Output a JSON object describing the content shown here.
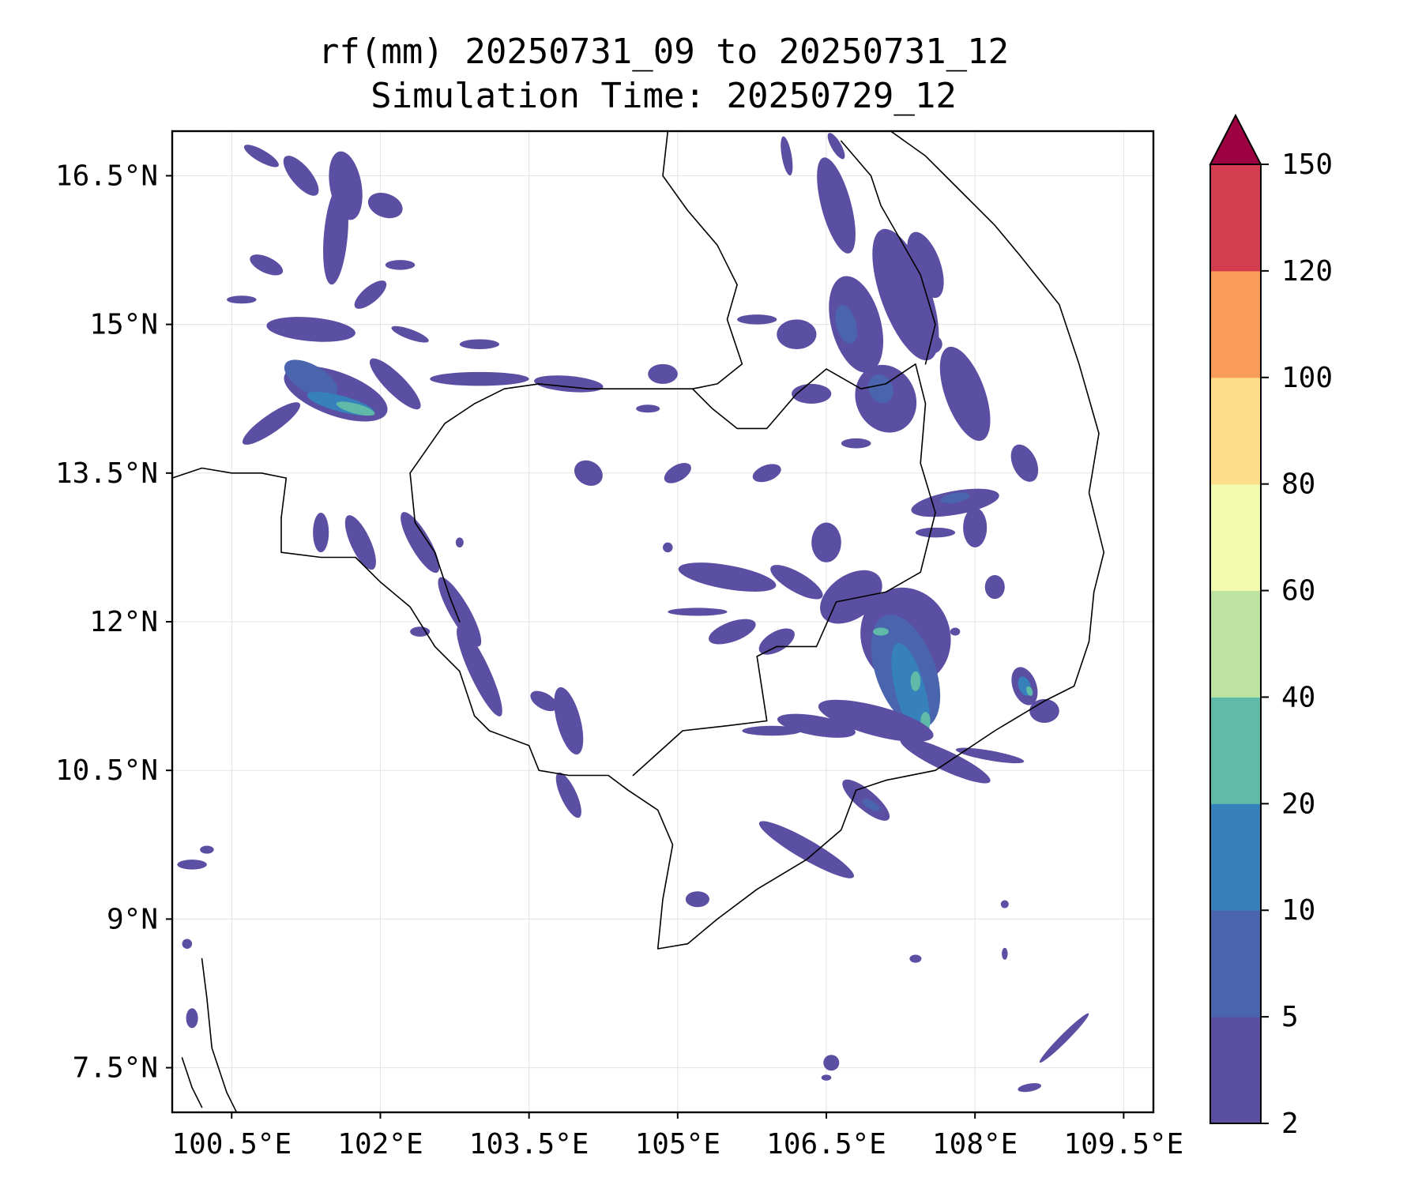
{
  "title": {
    "line1": "rf(mm) 20250731_09 to 20250731_12",
    "line2": "Simulation Time: 20250729_12"
  },
  "map": {
    "lon_range": [
      99.9,
      109.8
    ],
    "lat_range": [
      7.05,
      16.95
    ],
    "x_ticks": [
      {
        "value": 100.5,
        "label": "100.5°E"
      },
      {
        "value": 102.0,
        "label": "102°E"
      },
      {
        "value": 103.5,
        "label": "103.5°E"
      },
      {
        "value": 105.0,
        "label": "105°E"
      },
      {
        "value": 106.5,
        "label": "106.5°E"
      },
      {
        "value": 108.0,
        "label": "108°E"
      },
      {
        "value": 109.5,
        "label": "109.5°E"
      }
    ],
    "y_ticks": [
      {
        "value": 16.5,
        "label": "16.5°N"
      },
      {
        "value": 15.0,
        "label": "15°N"
      },
      {
        "value": 13.5,
        "label": "13.5°N"
      },
      {
        "value": 12.0,
        "label": "12°N"
      },
      {
        "value": 10.5,
        "label": "10.5°N"
      },
      {
        "value": 9.0,
        "label": "9°N"
      },
      {
        "value": 7.5,
        "label": "7.5°N"
      }
    ],
    "grid": true
  },
  "colorbar": {
    "levels": [
      2,
      5,
      10,
      20,
      40,
      60,
      80,
      100,
      120,
      150
    ],
    "colors": [
      "#5a4fa2",
      "#4a64ae",
      "#3680bb",
      "#5fbaa8",
      "#bce3a0",
      "#f2faad",
      "#fddd8b",
      "#fa9c5a",
      "#d43d4f"
    ],
    "extend_color": "#9e0142",
    "labels": [
      "2",
      "5",
      "10",
      "20",
      "40",
      "60",
      "80",
      "100",
      "120",
      "150"
    ]
  },
  "rain_cells": [
    {
      "lon": 101.55,
      "lat": 14.3,
      "rx": 0.55,
      "ry": 0.22,
      "rot": 20,
      "level": 0
    },
    {
      "lon": 101.3,
      "lat": 14.45,
      "rx": 0.3,
      "ry": 0.14,
      "rot": 30,
      "level": 1
    },
    {
      "lon": 101.6,
      "lat": 14.2,
      "rx": 0.35,
      "ry": 0.08,
      "rot": 15,
      "level": 2
    },
    {
      "lon": 101.75,
      "lat": 14.15,
      "rx": 0.2,
      "ry": 0.05,
      "rot": 15,
      "level": 3
    },
    {
      "lon": 100.9,
      "lat": 14.0,
      "rx": 0.35,
      "ry": 0.09,
      "rot": -35,
      "level": 0
    },
    {
      "lon": 102.15,
      "lat": 14.4,
      "rx": 0.35,
      "ry": 0.1,
      "rot": 45,
      "level": 0
    },
    {
      "lon": 101.3,
      "lat": 14.95,
      "rx": 0.45,
      "ry": 0.12,
      "rot": 5,
      "level": 0
    },
    {
      "lon": 101.2,
      "lat": 16.5,
      "rx": 0.25,
      "ry": 0.1,
      "rot": 50,
      "level": 0
    },
    {
      "lon": 100.8,
      "lat": 16.7,
      "rx": 0.2,
      "ry": 0.06,
      "rot": 30,
      "level": 0
    },
    {
      "lon": 101.65,
      "lat": 16.4,
      "rx": 0.16,
      "ry": 0.35,
      "rot": -10,
      "level": 0
    },
    {
      "lon": 101.55,
      "lat": 15.9,
      "rx": 0.12,
      "ry": 0.5,
      "rot": 5,
      "level": 0
    },
    {
      "lon": 101.9,
      "lat": 15.3,
      "rx": 0.2,
      "ry": 0.08,
      "rot": -40,
      "level": 0
    },
    {
      "lon": 102.05,
      "lat": 16.2,
      "rx": 0.18,
      "ry": 0.12,
      "rot": 20,
      "level": 0
    },
    {
      "lon": 100.85,
      "lat": 15.6,
      "rx": 0.18,
      "ry": 0.08,
      "rot": 25,
      "level": 0
    },
    {
      "lon": 100.6,
      "lat": 15.25,
      "rx": 0.15,
      "ry": 0.04,
      "rot": 0,
      "level": 0
    },
    {
      "lon": 102.2,
      "lat": 15.6,
      "rx": 0.15,
      "ry": 0.05,
      "rot": 0,
      "level": 0
    },
    {
      "lon": 102.3,
      "lat": 14.9,
      "rx": 0.2,
      "ry": 0.05,
      "rot": 20,
      "level": 0
    },
    {
      "lon": 103.0,
      "lat": 14.8,
      "rx": 0.2,
      "ry": 0.05,
      "rot": 0,
      "level": 0
    },
    {
      "lon": 103.0,
      "lat": 14.45,
      "rx": 0.5,
      "ry": 0.07,
      "rot": 0,
      "level": 0
    },
    {
      "lon": 103.9,
      "lat": 14.4,
      "rx": 0.35,
      "ry": 0.08,
      "rot": 5,
      "level": 0
    },
    {
      "lon": 104.85,
      "lat": 14.5,
      "rx": 0.15,
      "ry": 0.1,
      "rot": 0,
      "level": 0
    },
    {
      "lon": 104.1,
      "lat": 13.5,
      "rx": 0.15,
      "ry": 0.12,
      "rot": 30,
      "level": 0
    },
    {
      "lon": 105.0,
      "lat": 13.5,
      "rx": 0.15,
      "ry": 0.08,
      "rot": -30,
      "level": 0
    },
    {
      "lon": 102.4,
      "lat": 12.8,
      "rx": 0.1,
      "ry": 0.35,
      "rot": -30,
      "level": 0
    },
    {
      "lon": 101.8,
      "lat": 12.8,
      "rx": 0.1,
      "ry": 0.3,
      "rot": -25,
      "level": 0
    },
    {
      "lon": 101.4,
      "lat": 12.9,
      "rx": 0.08,
      "ry": 0.2,
      "rot": 0,
      "level": 0
    },
    {
      "lon": 102.8,
      "lat": 12.1,
      "rx": 0.1,
      "ry": 0.4,
      "rot": -30,
      "level": 0
    },
    {
      "lon": 103.0,
      "lat": 11.5,
      "rx": 0.1,
      "ry": 0.5,
      "rot": -25,
      "level": 0
    },
    {
      "lon": 103.9,
      "lat": 11.0,
      "rx": 0.12,
      "ry": 0.35,
      "rot": -15,
      "level": 0
    },
    {
      "lon": 103.9,
      "lat": 10.25,
      "rx": 0.08,
      "ry": 0.25,
      "rot": -25,
      "level": 0
    },
    {
      "lon": 103.65,
      "lat": 11.2,
      "rx": 0.15,
      "ry": 0.08,
      "rot": 30,
      "level": 0
    },
    {
      "lon": 102.4,
      "lat": 11.9,
      "rx": 0.1,
      "ry": 0.05,
      "rot": 0,
      "level": 0
    },
    {
      "lon": 105.5,
      "lat": 12.45,
      "rx": 0.5,
      "ry": 0.12,
      "rot": 10,
      "level": 0
    },
    {
      "lon": 106.2,
      "lat": 12.4,
      "rx": 0.3,
      "ry": 0.1,
      "rot": 30,
      "level": 0
    },
    {
      "lon": 105.55,
      "lat": 11.9,
      "rx": 0.25,
      "ry": 0.1,
      "rot": -20,
      "level": 0
    },
    {
      "lon": 106.0,
      "lat": 11.8,
      "rx": 0.2,
      "ry": 0.1,
      "rot": -30,
      "level": 0
    },
    {
      "lon": 105.2,
      "lat": 12.1,
      "rx": 0.3,
      "ry": 0.04,
      "rot": 0,
      "level": 0
    },
    {
      "lon": 106.75,
      "lat": 12.25,
      "rx": 0.35,
      "ry": 0.22,
      "rot": -35,
      "level": 0
    },
    {
      "lon": 106.5,
      "lat": 12.8,
      "rx": 0.15,
      "ry": 0.2,
      "rot": 0,
      "level": 0
    },
    {
      "lon": 107.3,
      "lat": 11.85,
      "rx": 0.45,
      "ry": 0.5,
      "rot": -20,
      "level": 0
    },
    {
      "lon": 107.3,
      "lat": 11.5,
      "rx": 0.3,
      "ry": 0.6,
      "rot": -20,
      "level": 1
    },
    {
      "lon": 107.35,
      "lat": 11.3,
      "rx": 0.15,
      "ry": 0.5,
      "rot": -15,
      "level": 2
    },
    {
      "lon": 107.4,
      "lat": 11.4,
      "rx": 0.05,
      "ry": 0.1,
      "rot": 0,
      "level": 3
    },
    {
      "lon": 107.5,
      "lat": 11.0,
      "rx": 0.05,
      "ry": 0.09,
      "rot": 0,
      "level": 3
    },
    {
      "lon": 107.05,
      "lat": 11.9,
      "rx": 0.08,
      "ry": 0.04,
      "rot": 0,
      "level": 3
    },
    {
      "lon": 107.0,
      "lat": 11.0,
      "rx": 0.6,
      "ry": 0.15,
      "rot": 15,
      "level": 0
    },
    {
      "lon": 106.4,
      "lat": 10.95,
      "rx": 0.4,
      "ry": 0.1,
      "rot": 10,
      "level": 0
    },
    {
      "lon": 105.95,
      "lat": 10.9,
      "rx": 0.3,
      "ry": 0.05,
      "rot": 0,
      "level": 0
    },
    {
      "lon": 107.7,
      "lat": 10.6,
      "rx": 0.5,
      "ry": 0.1,
      "rot": 25,
      "level": 0
    },
    {
      "lon": 108.15,
      "lat": 10.65,
      "rx": 0.35,
      "ry": 0.05,
      "rot": 10,
      "level": 0
    },
    {
      "lon": 106.3,
      "lat": 9.7,
      "rx": 0.55,
      "ry": 0.1,
      "rot": 30,
      "level": 0
    },
    {
      "lon": 106.9,
      "lat": 10.2,
      "rx": 0.3,
      "ry": 0.1,
      "rot": 40,
      "level": 0
    },
    {
      "lon": 106.95,
      "lat": 10.15,
      "rx": 0.1,
      "ry": 0.04,
      "rot": 30,
      "level": 1
    },
    {
      "lon": 105.2,
      "lat": 9.2,
      "rx": 0.12,
      "ry": 0.08,
      "rot": 0,
      "level": 0
    },
    {
      "lon": 108.5,
      "lat": 11.35,
      "rx": 0.12,
      "ry": 0.2,
      "rot": -20,
      "level": 0
    },
    {
      "lon": 108.5,
      "lat": 11.35,
      "rx": 0.06,
      "ry": 0.1,
      "rot": -20,
      "level": 2
    },
    {
      "lon": 108.55,
      "lat": 11.3,
      "rx": 0.03,
      "ry": 0.05,
      "rot": -20,
      "level": 3
    },
    {
      "lon": 108.7,
      "lat": 11.1,
      "rx": 0.15,
      "ry": 0.12,
      "rot": 0,
      "level": 0
    },
    {
      "lon": 108.2,
      "lat": 12.35,
      "rx": 0.1,
      "ry": 0.12,
      "rot": 0,
      "level": 0
    },
    {
      "lon": 107.3,
      "lat": 15.3,
      "rx": 0.25,
      "ry": 0.7,
      "rot": -20,
      "level": 0
    },
    {
      "lon": 107.5,
      "lat": 15.6,
      "rx": 0.15,
      "ry": 0.35,
      "rot": -20,
      "level": 0
    },
    {
      "lon": 106.8,
      "lat": 15.0,
      "rx": 0.25,
      "ry": 0.5,
      "rot": -15,
      "level": 0
    },
    {
      "lon": 106.7,
      "lat": 15.0,
      "rx": 0.1,
      "ry": 0.2,
      "rot": -15,
      "level": 1
    },
    {
      "lon": 106.2,
      "lat": 14.9,
      "rx": 0.2,
      "ry": 0.15,
      "rot": 0,
      "level": 0
    },
    {
      "lon": 105.8,
      "lat": 15.05,
      "rx": 0.2,
      "ry": 0.05,
      "rot": 0,
      "level": 0
    },
    {
      "lon": 107.1,
      "lat": 14.25,
      "rx": 0.3,
      "ry": 0.35,
      "rot": -25,
      "level": 0
    },
    {
      "lon": 107.05,
      "lat": 14.35,
      "rx": 0.12,
      "ry": 0.15,
      "rot": -25,
      "level": 1
    },
    {
      "lon": 106.35,
      "lat": 14.3,
      "rx": 0.2,
      "ry": 0.1,
      "rot": 0,
      "level": 0
    },
    {
      "lon": 106.8,
      "lat": 13.8,
      "rx": 0.15,
      "ry": 0.05,
      "rot": 0,
      "level": 0
    },
    {
      "lon": 107.9,
      "lat": 14.3,
      "rx": 0.2,
      "ry": 0.5,
      "rot": -20,
      "level": 0
    },
    {
      "lon": 107.8,
      "lat": 13.2,
      "rx": 0.45,
      "ry": 0.12,
      "rot": -10,
      "level": 0
    },
    {
      "lon": 107.8,
      "lat": 13.25,
      "rx": 0.15,
      "ry": 0.05,
      "rot": -10,
      "level": 1
    },
    {
      "lon": 108.0,
      "lat": 12.95,
      "rx": 0.12,
      "ry": 0.2,
      "rot": 0,
      "level": 0
    },
    {
      "lon": 107.6,
      "lat": 12.9,
      "rx": 0.2,
      "ry": 0.05,
      "rot": 0,
      "level": 0
    },
    {
      "lon": 108.5,
      "lat": 13.6,
      "rx": 0.12,
      "ry": 0.2,
      "rot": -25,
      "level": 0
    },
    {
      "lon": 106.6,
      "lat": 16.2,
      "rx": 0.15,
      "ry": 0.5,
      "rot": -15,
      "level": 0
    },
    {
      "lon": 106.1,
      "lat": 16.7,
      "rx": 0.05,
      "ry": 0.2,
      "rot": -10,
      "level": 0
    },
    {
      "lon": 106.6,
      "lat": 16.8,
      "rx": 0.05,
      "ry": 0.15,
      "rot": -30,
      "level": 0
    },
    {
      "lon": 107.55,
      "lat": 14.8,
      "rx": 0.12,
      "ry": 0.1,
      "rot": 0,
      "level": 0
    },
    {
      "lon": 105.9,
      "lat": 13.5,
      "rx": 0.15,
      "ry": 0.08,
      "rot": -20,
      "level": 0
    },
    {
      "lon": 108.9,
      "lat": 7.8,
      "rx": 0.35,
      "ry": 0.04,
      "rot": -45,
      "level": 0
    },
    {
      "lon": 108.55,
      "lat": 7.3,
      "rx": 0.12,
      "ry": 0.04,
      "rot": -10,
      "level": 0
    },
    {
      "lon": 106.55,
      "lat": 7.55,
      "rx": 0.08,
      "ry": 0.08,
      "rot": 45,
      "level": 0
    },
    {
      "lon": 107.4,
      "lat": 8.6,
      "rx": 0.06,
      "ry": 0.04,
      "rot": 0,
      "level": 0
    },
    {
      "lon": 108.3,
      "lat": 9.15,
      "rx": 0.04,
      "ry": 0.04,
      "rot": 0,
      "level": 0
    },
    {
      "lon": 108.3,
      "lat": 8.65,
      "rx": 0.03,
      "ry": 0.06,
      "rot": 0,
      "level": 0
    },
    {
      "lon": 106.5,
      "lat": 7.4,
      "rx": 0.05,
      "ry": 0.03,
      "rot": 0,
      "level": 0
    },
    {
      "lon": 100.1,
      "lat": 9.55,
      "rx": 0.15,
      "ry": 0.05,
      "rot": 0,
      "level": 0
    },
    {
      "lon": 100.25,
      "lat": 9.7,
      "rx": 0.07,
      "ry": 0.04,
      "rot": 0,
      "level": 0
    },
    {
      "lon": 100.05,
      "lat": 8.75,
      "rx": 0.05,
      "ry": 0.05,
      "rot": 0,
      "level": 0
    },
    {
      "lon": 100.1,
      "lat": 8.0,
      "rx": 0.06,
      "ry": 0.1,
      "rot": 0,
      "level": 0
    },
    {
      "lon": 104.9,
      "lat": 12.75,
      "rx": 0.05,
      "ry": 0.05,
      "rot": 0,
      "level": 0
    },
    {
      "lon": 102.8,
      "lat": 12.8,
      "rx": 0.04,
      "ry": 0.05,
      "rot": 0,
      "level": 0
    },
    {
      "lon": 107.8,
      "lat": 11.9,
      "rx": 0.05,
      "ry": 0.04,
      "rot": 0,
      "level": 0
    },
    {
      "lon": 104.7,
      "lat": 14.15,
      "rx": 0.12,
      "ry": 0.04,
      "rot": 0,
      "level": 0
    }
  ],
  "coast_lines": [
    [
      [
        100.55,
        7.05
      ],
      [
        100.45,
        7.25
      ],
      [
        100.3,
        7.7
      ],
      [
        100.25,
        8.2
      ],
      [
        100.2,
        8.6
      ]
    ],
    [
      [
        100.0,
        7.6
      ],
      [
        100.1,
        7.3
      ],
      [
        100.2,
        7.1
      ]
    ],
    [
      [
        101.0,
        13.05
      ],
      [
        101.0,
        12.7
      ],
      [
        101.4,
        12.65
      ],
      [
        101.75,
        12.65
      ],
      [
        102.0,
        12.4
      ],
      [
        102.3,
        12.15
      ],
      [
        102.55,
        11.75
      ],
      [
        102.8,
        11.5
      ],
      [
        102.95,
        11.05
      ],
      [
        103.1,
        10.9
      ],
      [
        103.5,
        10.75
      ],
      [
        103.6,
        10.5
      ],
      [
        103.9,
        10.45
      ],
      [
        104.3,
        10.45
      ],
      [
        104.5,
        10.3
      ],
      [
        104.8,
        10.1
      ],
      [
        104.95,
        9.75
      ],
      [
        104.85,
        9.2
      ],
      [
        104.8,
        8.7
      ],
      [
        105.1,
        8.75
      ],
      [
        105.4,
        9.0
      ],
      [
        105.8,
        9.3
      ],
      [
        106.3,
        9.6
      ],
      [
        106.65,
        9.9
      ],
      [
        106.8,
        10.3
      ],
      [
        107.1,
        10.4
      ],
      [
        107.6,
        10.5
      ],
      [
        108.2,
        10.9
      ],
      [
        108.7,
        11.2
      ],
      [
        109.0,
        11.35
      ],
      [
        109.15,
        11.8
      ],
      [
        109.2,
        12.3
      ],
      [
        109.3,
        12.7
      ],
      [
        109.15,
        13.3
      ],
      [
        109.25,
        13.9
      ],
      [
        109.05,
        14.6
      ],
      [
        108.85,
        15.2
      ],
      [
        108.45,
        15.7
      ],
      [
        108.2,
        16.0
      ],
      [
        107.9,
        16.3
      ],
      [
        107.5,
        16.7
      ],
      [
        107.15,
        16.95
      ]
    ]
  ],
  "border_lines": [
    [
      [
        99.9,
        13.45
      ],
      [
        100.2,
        13.55
      ],
      [
        100.5,
        13.5
      ],
      [
        100.8,
        13.5
      ],
      [
        101.05,
        13.45
      ],
      [
        101.0,
        13.05
      ]
    ],
    [
      [
        102.3,
        13.5
      ],
      [
        102.65,
        14.0
      ],
      [
        102.95,
        14.2
      ],
      [
        103.25,
        14.35
      ],
      [
        103.6,
        14.4
      ],
      [
        104.1,
        14.35
      ],
      [
        104.55,
        14.35
      ],
      [
        104.9,
        14.35
      ],
      [
        105.15,
        14.35
      ],
      [
        105.35,
        14.15
      ],
      [
        105.6,
        13.95
      ],
      [
        105.9,
        13.95
      ],
      [
        106.2,
        14.3
      ],
      [
        106.5,
        14.55
      ],
      [
        106.85,
        14.35
      ],
      [
        107.1,
        14.4
      ],
      [
        107.4,
        14.6
      ],
      [
        107.5,
        14.2
      ],
      [
        107.45,
        13.6
      ],
      [
        107.6,
        13.1
      ],
      [
        107.45,
        12.5
      ],
      [
        107.1,
        12.3
      ],
      [
        106.6,
        12.2
      ],
      [
        106.4,
        11.75
      ],
      [
        106.0,
        11.75
      ],
      [
        105.8,
        11.65
      ],
      [
        105.9,
        11.0
      ],
      [
        105.5,
        10.95
      ],
      [
        105.05,
        10.9
      ],
      [
        104.55,
        10.45
      ]
    ],
    [
      [
        102.3,
        13.5
      ],
      [
        102.35,
        13.0
      ],
      [
        102.55,
        12.7
      ],
      [
        102.7,
        12.25
      ],
      [
        102.8,
        12.0
      ]
    ],
    [
      [
        104.9,
        16.95
      ],
      [
        104.85,
        16.5
      ],
      [
        105.1,
        16.15
      ],
      [
        105.4,
        15.8
      ],
      [
        105.6,
        15.4
      ],
      [
        105.5,
        15.05
      ],
      [
        105.65,
        14.6
      ],
      [
        105.4,
        14.4
      ],
      [
        105.15,
        14.35
      ]
    ],
    [
      [
        107.5,
        14.6
      ],
      [
        107.6,
        15.0
      ],
      [
        107.45,
        15.5
      ],
      [
        107.25,
        15.85
      ],
      [
        107.05,
        16.2
      ],
      [
        106.95,
        16.5
      ],
      [
        106.65,
        16.85
      ]
    ]
  ]
}
